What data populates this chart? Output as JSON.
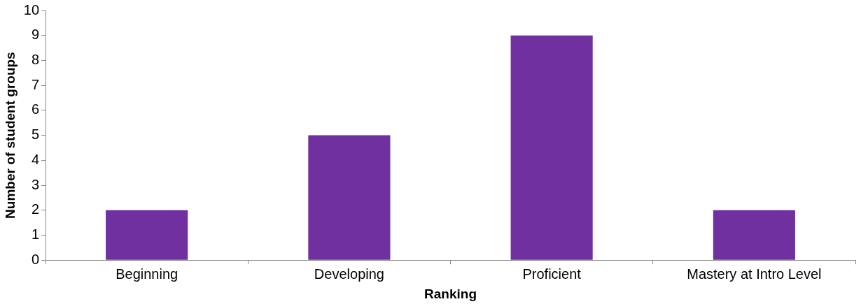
{
  "chart_data": {
    "type": "bar",
    "xlabel": "Ranking",
    "ylabel": "Number of student groups",
    "categories": [
      "Beginning",
      "Developing",
      "Proficient",
      "Mastery at Intro Level"
    ],
    "values": [
      2,
      5,
      9,
      2
    ],
    "color": "#7030a0",
    "ylim": [
      0,
      10
    ],
    "yticks": [
      0,
      1,
      2,
      3,
      4,
      5,
      6,
      7,
      8,
      9,
      10
    ],
    "grid": false,
    "legend": false
  }
}
